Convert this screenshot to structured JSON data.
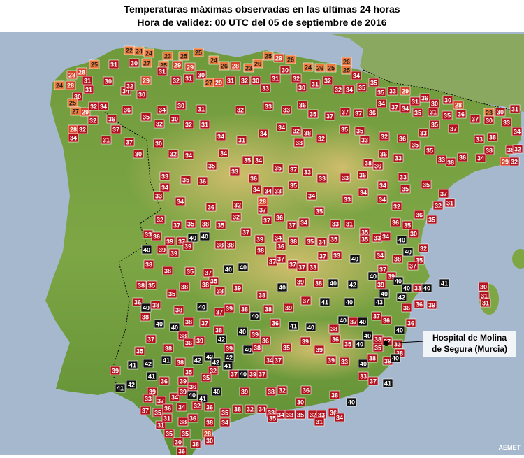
{
  "title_lines": [
    "Temperaturas máximas observadas en las últimas 24 horas",
    "Hora de validez: 00 UTC del 05 de septiembre de 2016"
  ],
  "stations": [
    22,
    24,
    24,
    23,
    25,
    25,
    25,
    30,
    27,
    25,
    29,
    29,
    24,
    26,
    28,
    23,
    26,
    25,
    29,
    26,
    24,
    26,
    25,
    26,
    25,
    28,
    28,
    24,
    28,
    31,
    30,
    31,
    31,
    30,
    25,
    27,
    29,
    32,
    34,
    28,
    32,
    34,
    32,
    31,
    36,
    37,
    37,
    34,
    32,
    30,
    29,
    31,
    32,
    31,
    30,
    27,
    29,
    31,
    32,
    30,
    33,
    31,
    30,
    32,
    30,
    31,
    32,
    32,
    34,
    35,
    34,
    35,
    35,
    33,
    29,
    31,
    36,
    30,
    30,
    28,
    23,
    30,
    31,
    36,
    35,
    34,
    30,
    31,
    32,
    33,
    33,
    36,
    35,
    37,
    37,
    37,
    36,
    34,
    37,
    34,
    35,
    31,
    35,
    36,
    37,
    30,
    33,
    34,
    32,
    30,
    32,
    31,
    34,
    31,
    34,
    34,
    32,
    33,
    38,
    32,
    35,
    35,
    33,
    32,
    36,
    33,
    35,
    37,
    33,
    38,
    38,
    32,
    38,
    34,
    29,
    32,
    36,
    38,
    33,
    35,
    35,
    33,
    36,
    38,
    36,
    30,
    30,
    32,
    34,
    35,
    34,
    35,
    34,
    35,
    37,
    33,
    33,
    33,
    36,
    34,
    33,
    35,
    35,
    37,
    32,
    31,
    33,
    35,
    36,
    33,
    36,
    34,
    34,
    33,
    28,
    35,
    34,
    33,
    34,
    34,
    32,
    36,
    34,
    33,
    34,
    36,
    32,
    32,
    37,
    37,
    36,
    37,
    34,
    35,
    33,
    31,
    35,
    33,
    36,
    35,
    30,
    35,
    32,
    32,
    37,
    35,
    38,
    35,
    33,
    36,
    39,
    37,
    40,
    40,
    38,
    38,
    37,
    39,
    34,
    36,
    38,
    35,
    34,
    35,
    35,
    34,
    40,
    35,
    40,
    39,
    39,
    39,
    38,
    38,
    35,
    37,
    35,
    40,
    40,
    38,
    37,
    37,
    37,
    37,
    33,
    37,
    33,
    40,
    34,
    38,
    40,
    37,
    37,
    40,
    39,
    38,
    35,
    35,
    38,
    38,
    38,
    39,
    38,
    40,
    39,
    38,
    40,
    42,
    39,
    40,
    40,
    33,
    40,
    41,
    36,
    40,
    38,
    38,
    40,
    37,
    39,
    38,
    40,
    38,
    39,
    37,
    41,
    40,
    43,
    40,
    42,
    36,
    36,
    39,
    38,
    40,
    40,
    38,
    37,
    38,
    40,
    39,
    36,
    41,
    40,
    38,
    40,
    37,
    40,
    37,
    36,
    40,
    36,
    37,
    38,
    38,
    36,
    39,
    42,
    39,
    40,
    38,
    36,
    35,
    39,
    39,
    36,
    35,
    40,
    40,
    38,
    35,
    37,
    33,
    39,
    38,
    40,
    38,
    35,
    42,
    41,
    38,
    35,
    42,
    42,
    42,
    42,
    32,
    41,
    35,
    37,
    40,
    39,
    37,
    34,
    37,
    39,
    33,
    33,
    37,
    41,
    40,
    39,
    41,
    41,
    36,
    39,
    36,
    41,
    42,
    39,
    37,
    34,
    39,
    40,
    41,
    40,
    39,
    38,
    32,
    36,
    38,
    40,
    37,
    35,
    36,
    34,
    32,
    36,
    35,
    38,
    32,
    34,
    33,
    34,
    33,
    35,
    32,
    33,
    36,
    34,
    31,
    30,
    35,
    34,
    38,
    36,
    38,
    31,
    35,
    35,
    28,
    30,
    38,
    30,
    36,
    33,
    31,
    30,
    31,
    31
  ],
  "callout_lines": [
    "Hospital de Molina",
    "de Segura (Murcia)"
  ],
  "credit": "AEMET"
}
